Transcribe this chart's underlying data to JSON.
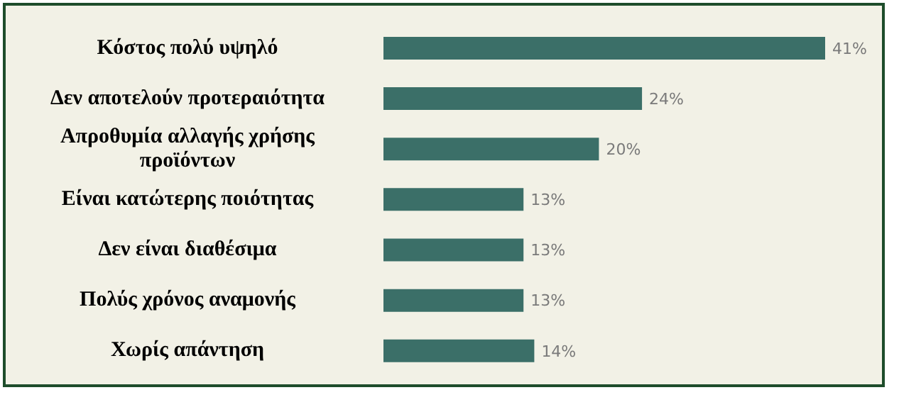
{
  "chart_data": {
    "type": "bar",
    "orientation": "horizontal",
    "categories": [
      "Κόστος πολύ υψηλό",
      "Δεν αποτελούν προτεραιότητα",
      "Απροθυμία αλλαγής χρήσης προϊόντων",
      "Είναι κατώτερης ποιότητας",
      "Δεν είναι διαθέσιμα",
      "Πολύς χρόνος αναμονής",
      "Χωρίς απάντηση"
    ],
    "values": [
      41,
      24,
      20,
      13,
      13,
      13,
      14
    ],
    "color": "#3b6f68",
    "value_labels": [
      "41%",
      "24%",
      "20%",
      "13%",
      "13%",
      "13%",
      "14%"
    ]
  }
}
